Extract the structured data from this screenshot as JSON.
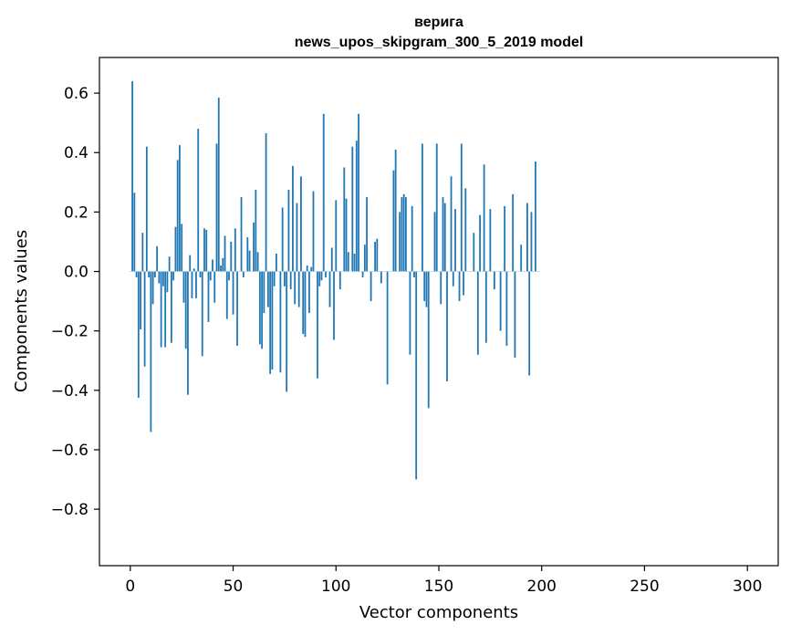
{
  "chart_data": {
    "type": "bar",
    "title_line1": "верига",
    "title_line2": "news_upos_skipgram_300_5_2019 model",
    "xlabel": "Vector components",
    "ylabel": "Components values",
    "xlim": [
      -15,
      315
    ],
    "ylim": [
      -0.99,
      0.72
    ],
    "xticks": [
      0,
      50,
      100,
      150,
      200,
      250,
      300
    ],
    "xtick_labels": [
      "0",
      "50",
      "100",
      "150",
      "200",
      "250",
      "300"
    ],
    "yticks": [
      -0.8,
      -0.6,
      -0.4,
      -0.2,
      0.0,
      0.2,
      0.4,
      0.6
    ],
    "ytick_labels": [
      "−0.8",
      "−0.6",
      "−0.4",
      "−0.2",
      "0.0",
      "0.2",
      "0.4",
      "0.6"
    ],
    "bar_color": "#1f77b4",
    "x_start": 0,
    "values": [
      0.0,
      0.64,
      0.265,
      -0.02,
      -0.425,
      -0.195,
      0.13,
      -0.32,
      0.42,
      -0.02,
      -0.54,
      -0.11,
      -0.02,
      0.085,
      -0.04,
      -0.255,
      -0.05,
      -0.255,
      -0.07,
      0.05,
      -0.24,
      -0.03,
      0.15,
      0.375,
      0.425,
      0.16,
      -0.105,
      -0.26,
      -0.415,
      0.055,
      -0.09,
      0.01,
      -0.09,
      0.48,
      -0.02,
      -0.285,
      0.145,
      0.14,
      -0.17,
      -0.03,
      0.04,
      -0.105,
      0.43,
      0.585,
      0.02,
      0.045,
      0.12,
      -0.16,
      -0.03,
      0.1,
      -0.145,
      0.145,
      -0.25,
      0.0,
      0.25,
      -0.02,
      0.0,
      0.115,
      0.07,
      0.0,
      0.165,
      0.275,
      0.065,
      -0.245,
      -0.26,
      -0.14,
      0.465,
      -0.12,
      -0.345,
      -0.33,
      -0.05,
      0.06,
      0.0,
      -0.34,
      0.215,
      -0.05,
      -0.405,
      0.275,
      -0.06,
      0.355,
      -0.11,
      0.23,
      -0.12,
      0.32,
      -0.21,
      -0.22,
      0.02,
      -0.14,
      0.015,
      0.27,
      0.0,
      -0.36,
      -0.05,
      -0.03,
      0.53,
      -0.02,
      0.0,
      -0.12,
      0.08,
      -0.23,
      0.24,
      0.0,
      -0.06,
      0.0,
      0.35,
      0.245,
      0.065,
      0.0,
      0.42,
      0.06,
      0.44,
      0.53,
      0.0,
      -0.02,
      0.09,
      0.25,
      0.0,
      -0.1,
      0.0,
      0.1,
      0.11,
      0.0,
      -0.04,
      0.0,
      0.0,
      -0.38,
      0.0,
      0.0,
      0.34,
      0.41,
      0.0,
      0.2,
      0.25,
      0.26,
      0.25,
      0.0,
      -0.28,
      0.22,
      -0.02,
      -0.7,
      0.0,
      0.0,
      0.43,
      -0.1,
      -0.12,
      -0.46,
      0.0,
      0.0,
      0.2,
      0.43,
      0.0,
      -0.11,
      0.25,
      0.23,
      -0.37,
      0.0,
      0.32,
      -0.05,
      0.21,
      0.0,
      -0.1,
      0.43,
      -0.08,
      0.28,
      0.0,
      0.0,
      0.0,
      0.13,
      0.0,
      -0.28,
      0.19,
      0.0,
      0.36,
      -0.24,
      0.0,
      0.21,
      0.0,
      -0.06,
      0.0,
      0.0,
      -0.2,
      0.0,
      0.22,
      -0.25,
      0.0,
      0.0,
      0.26,
      -0.29,
      0.0,
      0.0,
      0.09,
      0.0,
      0.0,
      0.23,
      -0.35,
      0.2,
      0.0,
      0.37,
      0.0,
      0.0
    ]
  }
}
